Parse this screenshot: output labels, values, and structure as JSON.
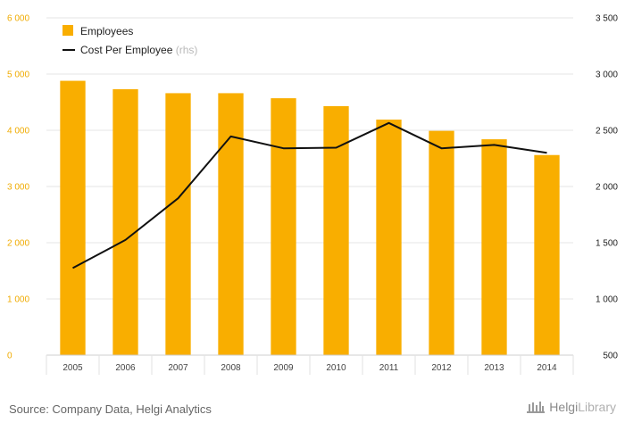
{
  "chart_data": {
    "type": "bar",
    "categories": [
      "2005",
      "2006",
      "2007",
      "2008",
      "2009",
      "2010",
      "2011",
      "2012",
      "2013",
      "2014"
    ],
    "series": [
      {
        "name": "Employees",
        "type": "bar",
        "axis": "left",
        "color": "#f9ae00",
        "values": [
          4880,
          4730,
          4660,
          4660,
          4570,
          4430,
          4190,
          3990,
          3840,
          3560
        ]
      },
      {
        "name": "Cost Per Employee",
        "type": "line",
        "axis": "right",
        "color": "#111111",
        "values": [
          1275,
          1525,
          1895,
          2445,
          2340,
          2345,
          2565,
          2340,
          2370,
          2300
        ]
      }
    ],
    "legend": {
      "placement": "top-left",
      "rhs_note": "(rhs)"
    },
    "left_axis": {
      "ylim": [
        0,
        6000
      ],
      "ticks": [
        0,
        1000,
        2000,
        3000,
        4000,
        5000,
        6000
      ],
      "tick_labels": [
        "0",
        "1 000",
        "2 000",
        "3 000",
        "4 000",
        "5 000",
        "6 000"
      ],
      "color": "#f0ab00"
    },
    "right_axis": {
      "ylim": [
        500,
        3500
      ],
      "ticks": [
        500,
        1000,
        1500,
        2000,
        2500,
        3000,
        3500
      ],
      "tick_labels": [
        "500",
        "1 000",
        "1 500",
        "2 000",
        "2 500",
        "3 000",
        "3 500"
      ],
      "color": "#222222"
    },
    "grid": true
  },
  "footer": {
    "source": "Source: Company Data, Helgi Analytics",
    "logo_part1": "Helgi",
    "logo_part2": "Library"
  }
}
